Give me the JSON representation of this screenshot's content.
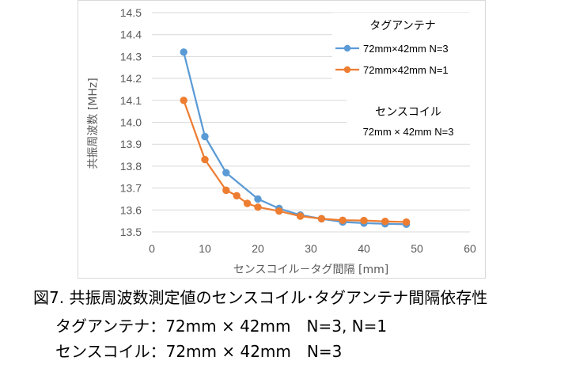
{
  "chart_data": {
    "type": "line",
    "title": "",
    "xlabel": "センスコイル－タグ間隔 [mm]",
    "ylabel": "共振周波数 [MHz]",
    "xlim": [
      0,
      60
    ],
    "ylim": [
      13.5,
      14.5
    ],
    "xticks": [
      0,
      10,
      20,
      30,
      40,
      50,
      60
    ],
    "xtick_labels": [
      "0",
      "10",
      "20",
      "30",
      "40",
      "50",
      "60"
    ],
    "yticks": [
      13.5,
      13.6,
      13.7,
      13.8,
      13.9,
      14.0,
      14.1,
      14.2,
      14.3,
      14.4,
      14.5
    ],
    "ytick_labels": [
      "13.5",
      "13.6",
      "13.7",
      "13.8",
      "13.9",
      "14.0",
      "14.1",
      "14.2",
      "14.3",
      "14.4",
      "14.5"
    ],
    "grid": "horizontal",
    "legend_title": "タグアンテナ",
    "legend_position": "top-right",
    "series": [
      {
        "name": "72mm×42mm N=3",
        "color": "#5b9bd5",
        "x": [
          6,
          10,
          14,
          20,
          24,
          28,
          32,
          36,
          40,
          44,
          48
        ],
        "y": [
          14.32,
          13.935,
          13.77,
          13.65,
          13.607,
          13.577,
          13.56,
          13.545,
          13.54,
          13.537,
          13.535
        ]
      },
      {
        "name": "72mm×42mm N=1",
        "color": "#ed7d31",
        "x": [
          6,
          10,
          14,
          16,
          18,
          20,
          24,
          28,
          32,
          36,
          40,
          44,
          48
        ],
        "y": [
          14.1,
          13.83,
          13.69,
          13.665,
          13.63,
          13.613,
          13.595,
          13.572,
          13.56,
          13.553,
          13.552,
          13.548,
          13.545
        ]
      }
    ],
    "annotation_lines": [
      "センスコイル",
      "72mm × 42mm N=3"
    ]
  },
  "caption": {
    "title": "図7. 共振周波数測定値のセンスコイル･タグアンテナ間隔依存性",
    "line1": "タグアンテナ：72mm × 42mm　N=3, N=1",
    "line2": "センスコイル：72mm × 42mm　N=3"
  }
}
